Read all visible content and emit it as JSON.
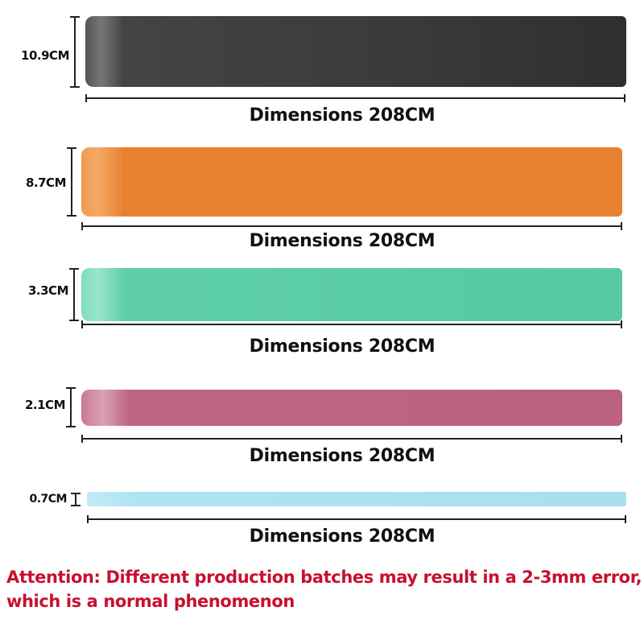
{
  "bands": [
    {
      "height_label": "10.9CM",
      "length_label": "Dimensions 208CM",
      "color": "#3e3e3e"
    },
    {
      "height_label": "8.7CM",
      "length_label": "Dimensions 208CM",
      "color": "#e8812f"
    },
    {
      "height_label": "3.3CM",
      "length_label": "Dimensions 208CM",
      "color": "#5ecfa9"
    },
    {
      "height_label": "2.1CM",
      "length_label": "Dimensions 208CM",
      "color": "#bd6580"
    },
    {
      "height_label": "0.7CM",
      "length_label": "Dimensions 208CM",
      "color": "#aee3f0"
    }
  ],
  "notice": {
    "line1": "Attention: Different production batches may result in a 2-3mm error,",
    "line2": "which is a normal phenomenon",
    "color": "#c8102e"
  }
}
